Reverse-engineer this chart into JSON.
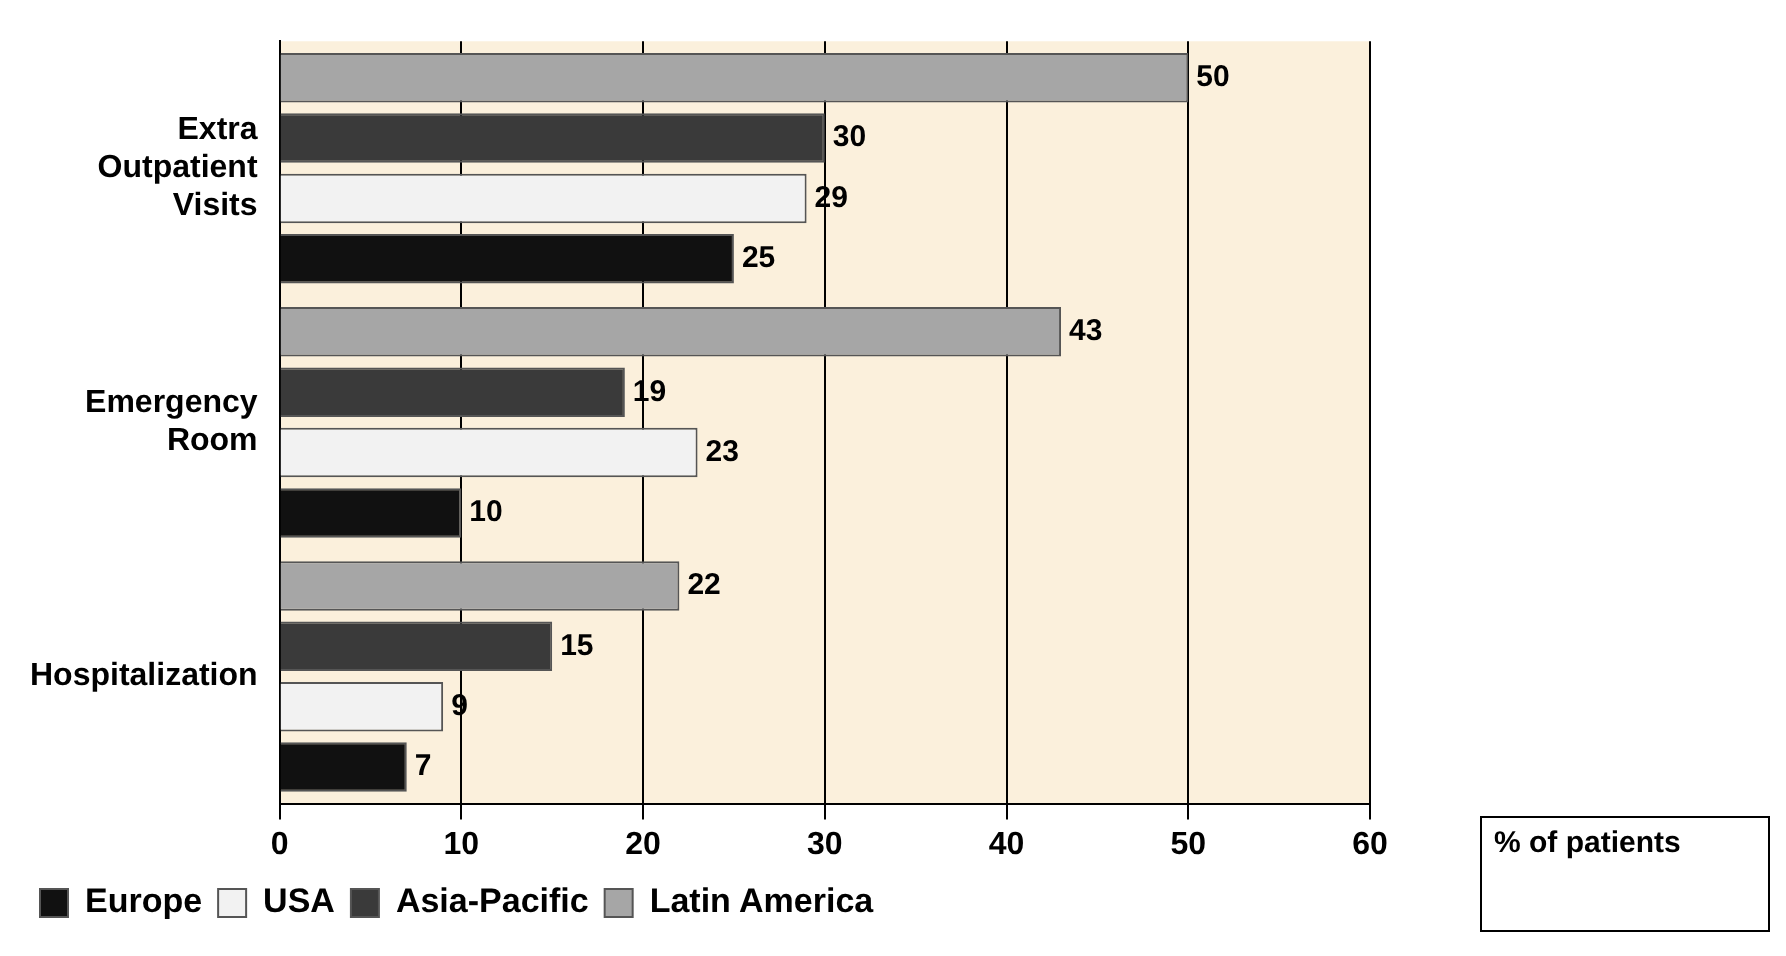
{
  "chart_data": {
    "type": "bar",
    "orientation": "horizontal",
    "xlabel": "% of patients",
    "categories": [
      "Extra Outpatient Visits",
      "Emergency Room",
      "Hospitalization"
    ],
    "series": [
      {
        "name": "Europe",
        "color": "#111111",
        "values": [
          25,
          10,
          7
        ]
      },
      {
        "name": "USA",
        "color": "#f2f2f2",
        "values": [
          29,
          23,
          9
        ]
      },
      {
        "name": "Asia-Pacific",
        "color": "#3a3a3a",
        "values": [
          30,
          19,
          15
        ]
      },
      {
        "name": "Latin America",
        "color": "#a6a6a6",
        "values": [
          50,
          43,
          22
        ]
      }
    ],
    "xlim": [
      0,
      60
    ],
    "xticks": [
      0,
      10,
      20,
      30,
      40,
      50,
      60
    ],
    "grid": "x",
    "legend": "bottom left",
    "data_labels": true
  }
}
